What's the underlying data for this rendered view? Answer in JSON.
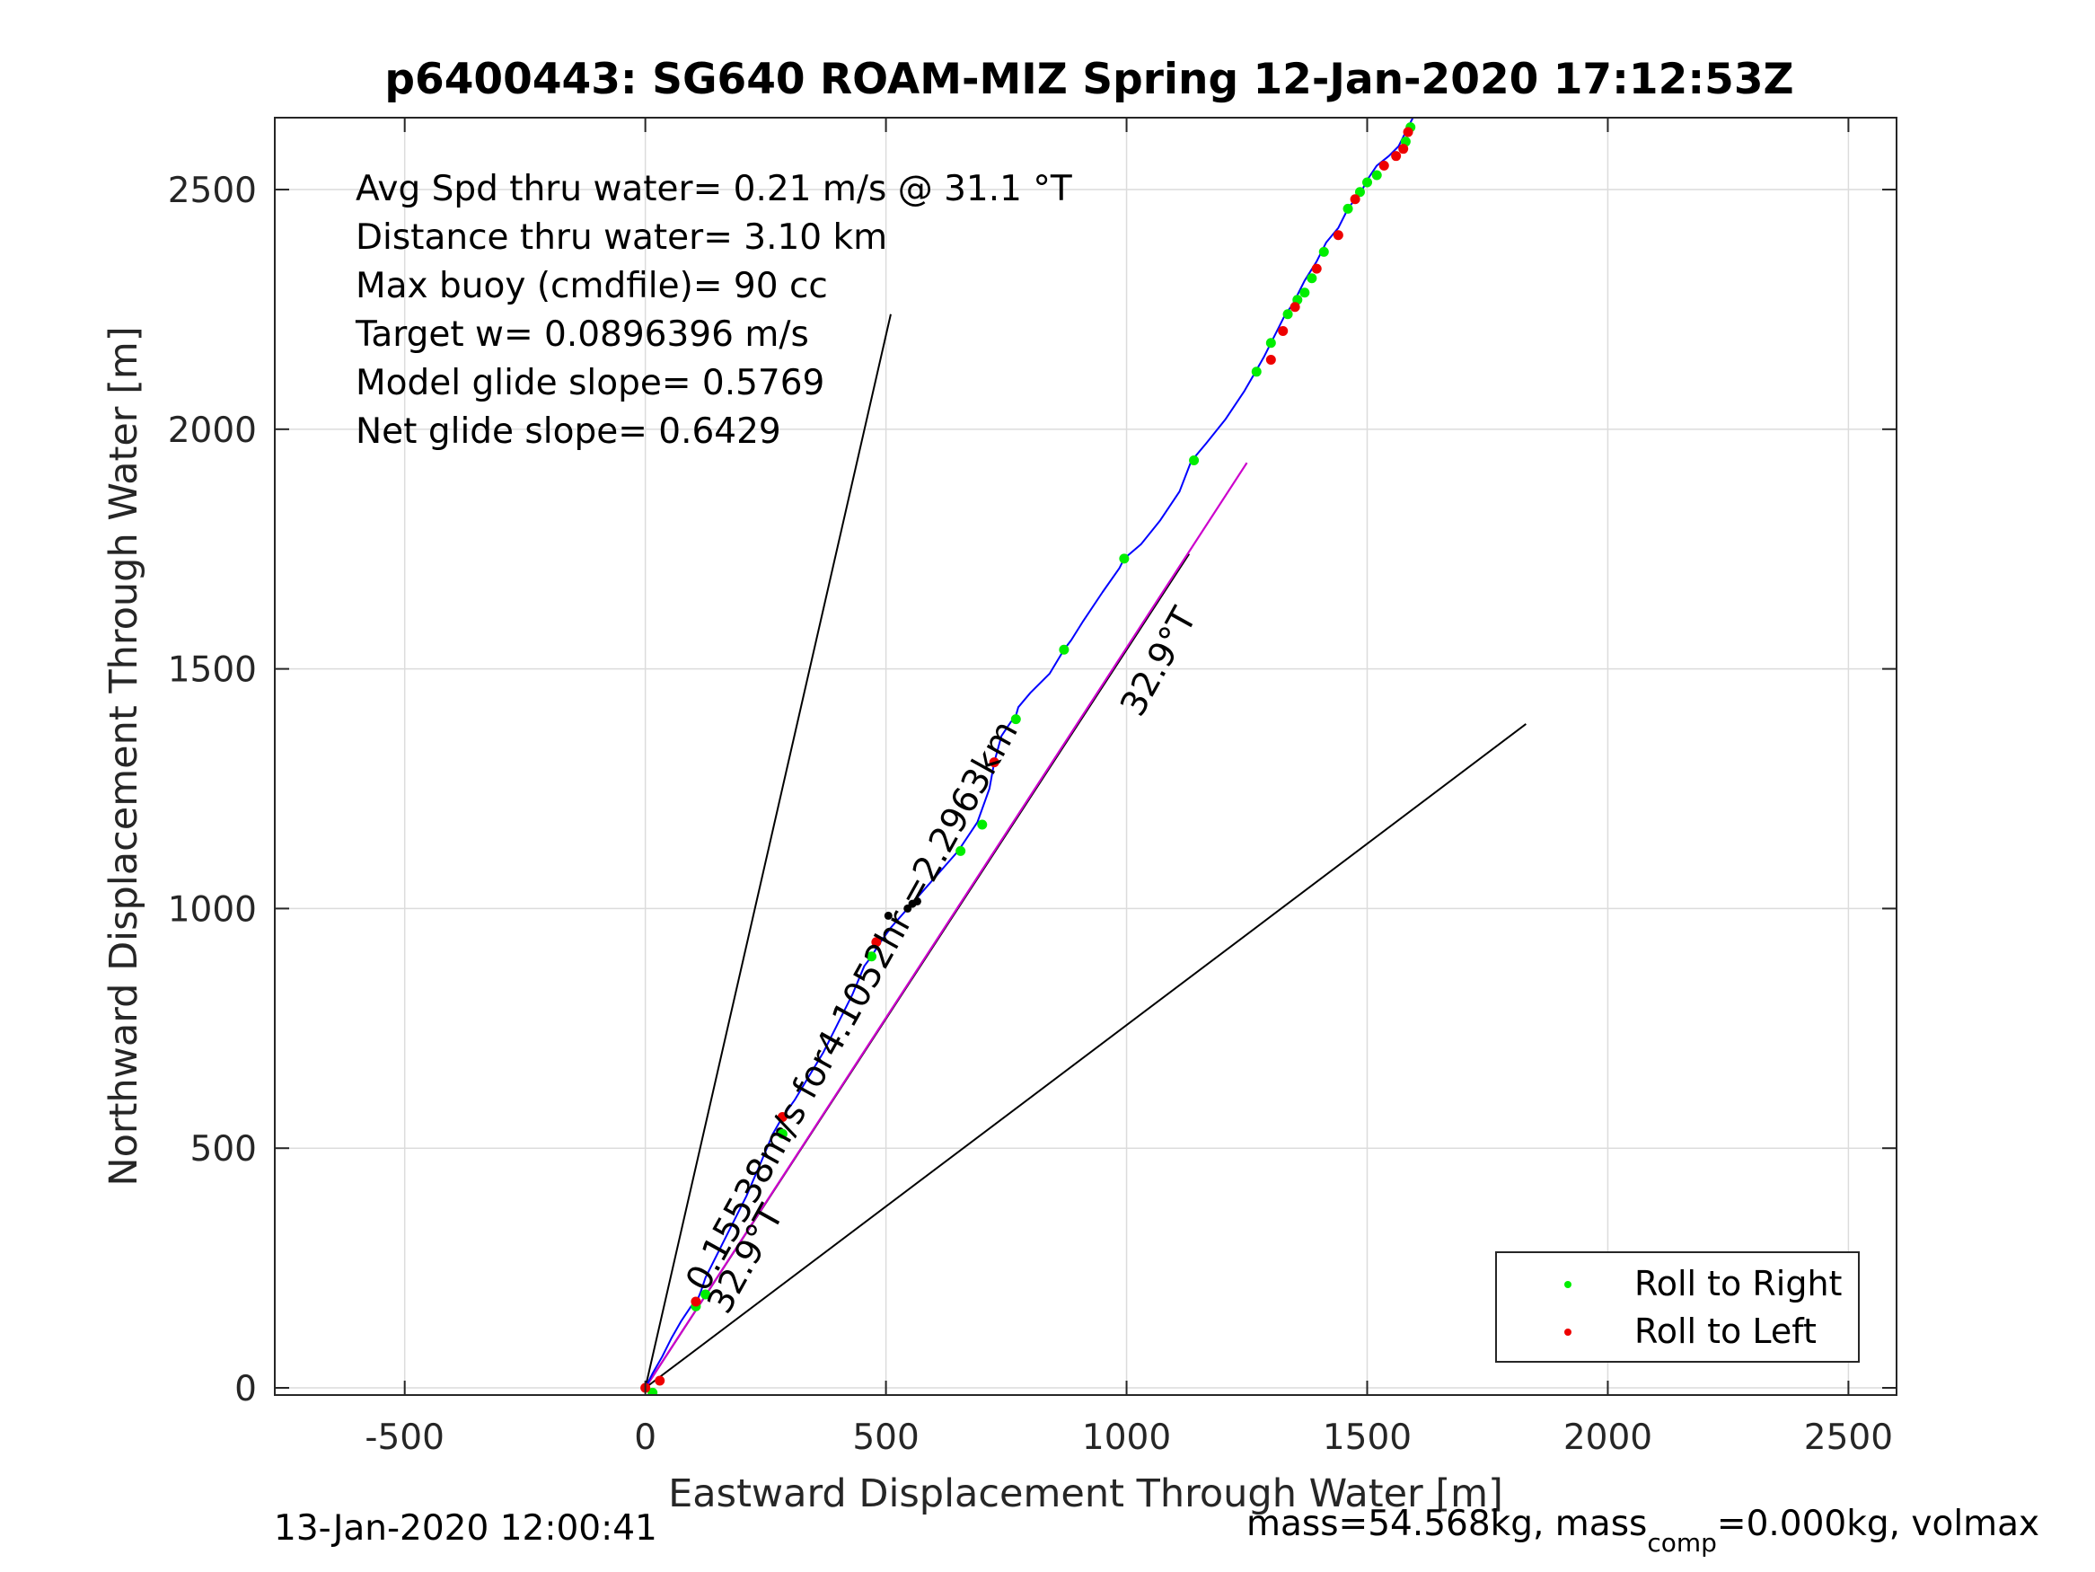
{
  "chart_data": {
    "type": "line",
    "title": "p6400443: SG640 ROAM-MIZ Spring 12-Jan-2020 17:12:53Z",
    "xlabel": "Eastward Displacement Through Water [m]",
    "ylabel": "Northward Displacement Through Water [m]",
    "xlim": [
      -770,
      2600
    ],
    "ylim": [
      -15,
      2650
    ],
    "xticks": [
      -500,
      0,
      500,
      1000,
      1500,
      2000,
      2500
    ],
    "yticks": [
      0,
      500,
      1000,
      1500,
      2000,
      2500
    ],
    "xtick_labels": [
      "-500",
      "0",
      "500",
      "1000",
      "1500",
      "2000",
      "2500"
    ],
    "ytick_labels": [
      "0",
      "500",
      "1000",
      "1500",
      "2000",
      "2500"
    ],
    "grid": true,
    "annotations": [
      "Avg Spd thru water=  0.21 m/s @  31.1 °T",
      "Distance thru water=  3.10 km",
      "Max buoy (cmdfile)= 90 cc",
      "Target w= 0.0896396 m/s",
      "Model glide slope= 0.5769",
      "Net glide slope= 0.6429"
    ],
    "line_labels": {
      "current_label": "0.15538m/s for4.1052hr =2.2963km",
      "heading_label_near": "32.9°T",
      "heading_label_far": "32.9°T"
    },
    "track": {
      "name": "track",
      "color": "#0000ff",
      "x": [
        0,
        15,
        35,
        55,
        75,
        95,
        105,
        115,
        125,
        150,
        180,
        210,
        240,
        265,
        285,
        310,
        340,
        370,
        400,
        430,
        455,
        470,
        485,
        510,
        545,
        580,
        615,
        650,
        690,
        715,
        725,
        740,
        760,
        768,
        775,
        800,
        840,
        870,
        885,
        910,
        950,
        985,
        995,
        1030,
        1070,
        1110,
        1135,
        1140,
        1165,
        1205,
        1245,
        1268,
        1285,
        1300,
        1330,
        1345,
        1370,
        1395,
        1415,
        1440,
        1460,
        1475,
        1490,
        1500,
        1520,
        1545,
        1565,
        1580,
        1595
      ],
      "y": [
        0,
        30,
        65,
        105,
        140,
        170,
        175,
        200,
        230,
        280,
        340,
        400,
        470,
        530,
        565,
        600,
        650,
        700,
        760,
        820,
        880,
        900,
        925,
        960,
        1000,
        1040,
        1080,
        1120,
        1180,
        1250,
        1305,
        1360,
        1390,
        1395,
        1420,
        1450,
        1490,
        1540,
        1560,
        1600,
        1660,
        1710,
        1730,
        1760,
        1810,
        1870,
        1935,
        1940,
        1970,
        2020,
        2080,
        2120,
        2150,
        2180,
        2240,
        2260,
        2310,
        2350,
        2390,
        2420,
        2460,
        2480,
        2500,
        2520,
        2550,
        2570,
        2590,
        2620,
        2650
      ]
    },
    "current_line": {
      "color": "#000000",
      "x": [
        0,
        1130
      ],
      "y": [
        0,
        1740
      ]
    },
    "heading_line": {
      "color": "#cc00cc",
      "x": [
        0,
        1250
      ],
      "y": [
        0,
        1930
      ]
    },
    "envelope_lines": {
      "color": "#000000",
      "left": {
        "x": [
          0,
          510
        ],
        "y": [
          0,
          2240
        ]
      },
      "right": {
        "x": [
          0,
          1830
        ],
        "y": [
          0,
          1385
        ]
      }
    },
    "roll_right_points": {
      "name": "Roll to Right",
      "color": "#00ee00",
      "x": [
        15,
        105,
        125,
        285,
        470,
        655,
        700,
        770,
        870,
        995,
        1140,
        1270,
        1300,
        1335,
        1355,
        1370,
        1385,
        1410,
        1460,
        1485,
        1500,
        1520,
        1580,
        1590
      ],
      "y": [
        -10,
        170,
        195,
        530,
        900,
        1120,
        1175,
        1395,
        1540,
        1730,
        1935,
        2120,
        2180,
        2240,
        2270,
        2285,
        2315,
        2370,
        2460,
        2495,
        2515,
        2530,
        2600,
        2630
      ]
    },
    "roll_left_points": {
      "name": "Roll to Left",
      "color": "#ee0000",
      "x": [
        0,
        30,
        105,
        285,
        480,
        725,
        1300,
        1325,
        1350,
        1395,
        1440,
        1475,
        1535,
        1560,
        1575,
        1585
      ],
      "y": [
        0,
        15,
        180,
        565,
        930,
        1305,
        2145,
        2205,
        2255,
        2335,
        2405,
        2480,
        2550,
        2570,
        2585,
        2620
      ]
    },
    "black_markers": {
      "x": [
        280,
        505,
        545,
        555,
        565
      ],
      "y": [
        535,
        985,
        1000,
        1010,
        1015
      ]
    },
    "legend": {
      "position": "bottom-right",
      "entries": [
        "Roll to Right",
        "Roll to Left"
      ]
    }
  },
  "footer": {
    "timestamp": "13-Jan-2020 12:00:41",
    "mass_text_part1": "mass=54.568kg, mass",
    "mass_text_sub": "comp",
    "mass_text_part2": "=0.000kg, volmax"
  }
}
